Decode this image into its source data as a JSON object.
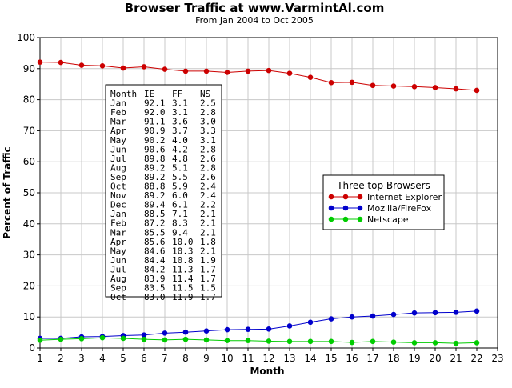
{
  "chart_data": {
    "type": "line",
    "title": "Browser Traffic at www.VarmintAl.com",
    "subtitle": "From Jan 2004 to Oct 2005",
    "xlabel": "Month",
    "ylabel": "Percent of Traffic",
    "xlim": [
      1,
      23
    ],
    "ylim": [
      0,
      100
    ],
    "xticks": [
      1,
      2,
      3,
      4,
      5,
      6,
      7,
      8,
      9,
      10,
      11,
      12,
      13,
      14,
      15,
      16,
      17,
      18,
      19,
      20,
      21,
      22,
      23
    ],
    "yticks": [
      0,
      10,
      20,
      30,
      40,
      50,
      60,
      70,
      80,
      90,
      100
    ],
    "grid": true,
    "x": [
      1,
      2,
      3,
      4,
      5,
      6,
      7,
      8,
      9,
      10,
      11,
      12,
      13,
      14,
      15,
      16,
      17,
      18,
      19,
      20,
      21,
      22
    ],
    "series": [
      {
        "name": "Internet Explorer",
        "color": "#cc0000",
        "values": [
          92.1,
          92.0,
          91.1,
          90.9,
          90.2,
          90.6,
          89.8,
          89.2,
          89.2,
          88.8,
          89.2,
          89.4,
          88.5,
          87.2,
          85.5,
          85.6,
          84.6,
          84.4,
          84.2,
          83.9,
          83.5,
          83.0
        ]
      },
      {
        "name": "Mozilla/FireFox",
        "color": "#0000cc",
        "values": [
          3.1,
          3.1,
          3.6,
          3.7,
          4.0,
          4.2,
          4.8,
          5.1,
          5.5,
          5.9,
          6.0,
          6.1,
          7.1,
          8.3,
          9.4,
          10.0,
          10.3,
          10.8,
          11.3,
          11.4,
          11.5,
          11.9
        ]
      },
      {
        "name": "Netscape",
        "color": "#00cc00",
        "values": [
          2.5,
          2.8,
          3.0,
          3.3,
          3.1,
          2.8,
          2.6,
          2.8,
          2.6,
          2.4,
          2.4,
          2.2,
          2.1,
          2.1,
          2.1,
          1.8,
          2.1,
          1.9,
          1.7,
          1.7,
          1.5,
          1.7
        ]
      }
    ],
    "legend": {
      "title": "Three top Browsers",
      "placement": "right"
    },
    "table": {
      "header": [
        "Month",
        "IE",
        "FF",
        "NS"
      ],
      "rows": [
        [
          "Jan",
          "92.1",
          "3.1",
          "2.5"
        ],
        [
          "Feb",
          "92.0",
          "3.1",
          "2.8"
        ],
        [
          "Mar",
          "91.1",
          "3.6",
          "3.0"
        ],
        [
          "Apr",
          "90.9",
          "3.7",
          "3.3"
        ],
        [
          "May",
          "90.2",
          "4.0",
          "3.1"
        ],
        [
          "Jun",
          "90.6",
          "4.2",
          "2.8"
        ],
        [
          "Jul",
          "89.8",
          "4.8",
          "2.6"
        ],
        [
          "Aug",
          "89.2",
          "5.1",
          "2.8"
        ],
        [
          "Sep",
          "89.2",
          "5.5",
          "2.6"
        ],
        [
          "Oct",
          "88.8",
          "5.9",
          "2.4"
        ],
        [
          "Nov",
          "89.2",
          "6.0",
          "2.4"
        ],
        [
          "Dec",
          "89.4",
          "6.1",
          "2.2"
        ],
        [
          "Jan",
          "88.5",
          "7.1",
          "2.1"
        ],
        [
          "Feb",
          "87.2",
          "8.3",
          "2.1"
        ],
        [
          "Mar",
          "85.5",
          "9.4",
          "2.1"
        ],
        [
          "Apr",
          "85.6",
          "10.0",
          "1.8"
        ],
        [
          "May",
          "84.6",
          "10.3",
          "2.1"
        ],
        [
          "Jun",
          "84.4",
          "10.8",
          "1.9"
        ],
        [
          "Jul",
          "84.2",
          "11.3",
          "1.7"
        ],
        [
          "Aug",
          "83.9",
          "11.4",
          "1.7"
        ],
        [
          "Sep",
          "83.5",
          "11.5",
          "1.5"
        ],
        [
          "Oct",
          "83.0",
          "11.9",
          "1.7"
        ]
      ]
    }
  }
}
